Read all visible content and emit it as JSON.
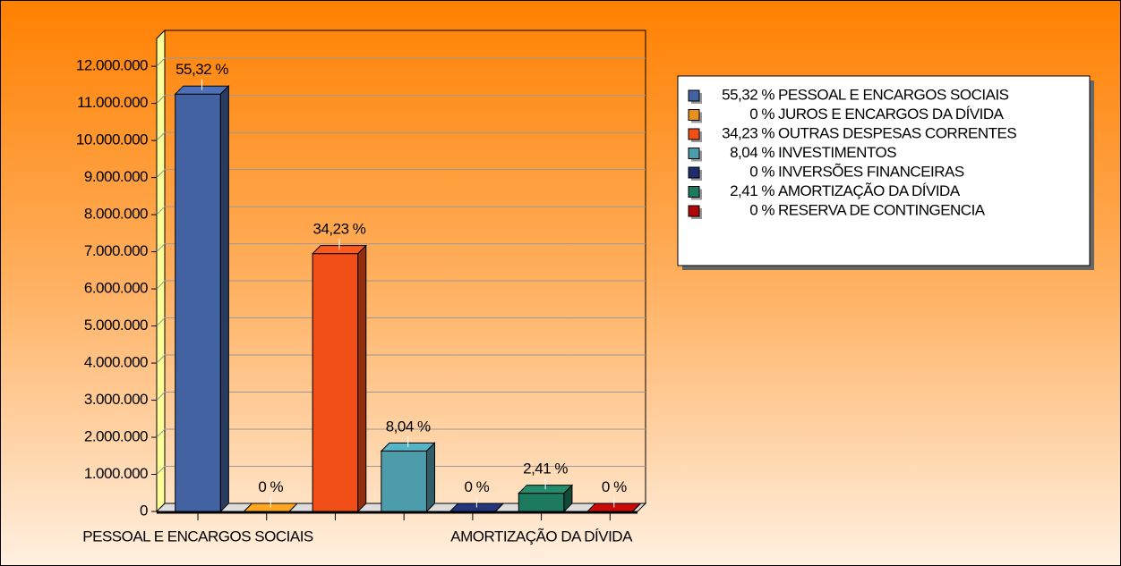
{
  "chart_data": {
    "type": "bar",
    "categories": [
      "PESSOAL E ENCARGOS SOCIAIS",
      null,
      null,
      null,
      null,
      "AMORTIZAÇÃO DA DÍVIDA",
      null
    ],
    "values": [
      11250000,
      0,
      6950000,
      1630000,
      0,
      490000,
      0
    ],
    "percent_labels": [
      "55,32 %",
      "0 %",
      "34,23 %",
      "8,04 %",
      "0 %",
      "2,41 %",
      "0 %"
    ],
    "legend_names": [
      "PESSOAL E ENCARGOS SOCIAIS",
      "JUROS E ENCARGOS DA DÍVIDA",
      "OUTRAS DESPESAS CORRENTES",
      "INVESTIMENTOS",
      "INVERSÕES FINANCEIRAS",
      "AMORTIZAÇÃO DA DÍVIDA",
      "RESERVA DE CONTINGENCIA"
    ],
    "colors": [
      "#4262a2",
      "#e8901e",
      "#f24e18",
      "#4c9cac",
      "#1e2e6c",
      "#1e7a5e",
      "#b00808"
    ],
    "ylim": [
      0,
      12750000
    ],
    "yticks": [
      0,
      {
        "value": 1000000,
        "label": "1.000.000"
      },
      {
        "value": 2000000,
        "label": "2.000.000"
      },
      {
        "value": 3000000,
        "label": "3.000.000"
      },
      {
        "value": 4000000,
        "label": "4.000.000"
      },
      {
        "value": 5000000,
        "label": "5.000.000"
      },
      {
        "value": 6000000,
        "label": "6.000.000"
      },
      {
        "value": 7000000,
        "label": "7.000.000"
      },
      {
        "value": 8000000,
        "label": "8.000.000"
      },
      {
        "value": 9000000,
        "label": "9.000.000"
      },
      {
        "value": 10000000,
        "label": "10.000.000"
      },
      {
        "value": 11000000,
        "label": "11.000.000"
      },
      {
        "value": 12000000,
        "label": "12.000.000"
      }
    ],
    "grid": true
  }
}
